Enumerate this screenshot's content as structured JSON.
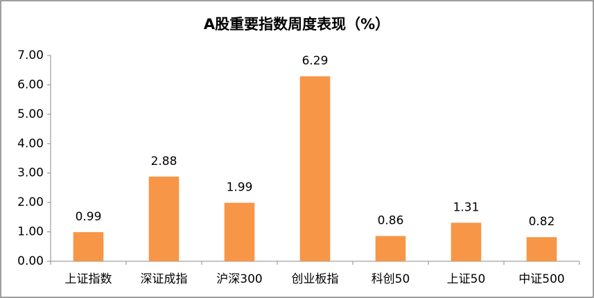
{
  "chart_data": {
    "type": "bar",
    "title": "A股重要指数周度表现（%）",
    "categories": [
      "上证指数",
      "深证成指",
      "沪深300",
      "创业板指",
      "科创50",
      "上证50",
      "中证500"
    ],
    "values": [
      0.99,
      2.88,
      1.99,
      6.29,
      0.86,
      1.31,
      0.82
    ],
    "color": "#f79646",
    "ylim": [
      0,
      7
    ],
    "yticks": [
      {
        "value": 0,
        "label": "0.00"
      },
      {
        "value": 1,
        "label": "1.00"
      },
      {
        "value": 2,
        "label": "2.00"
      },
      {
        "value": 3,
        "label": "3.00"
      },
      {
        "value": 4,
        "label": "4.00"
      },
      {
        "value": 5,
        "label": "5.00"
      },
      {
        "value": 6,
        "label": "6.00"
      },
      {
        "value": 7,
        "label": "7.00"
      }
    ],
    "grid": false
  }
}
